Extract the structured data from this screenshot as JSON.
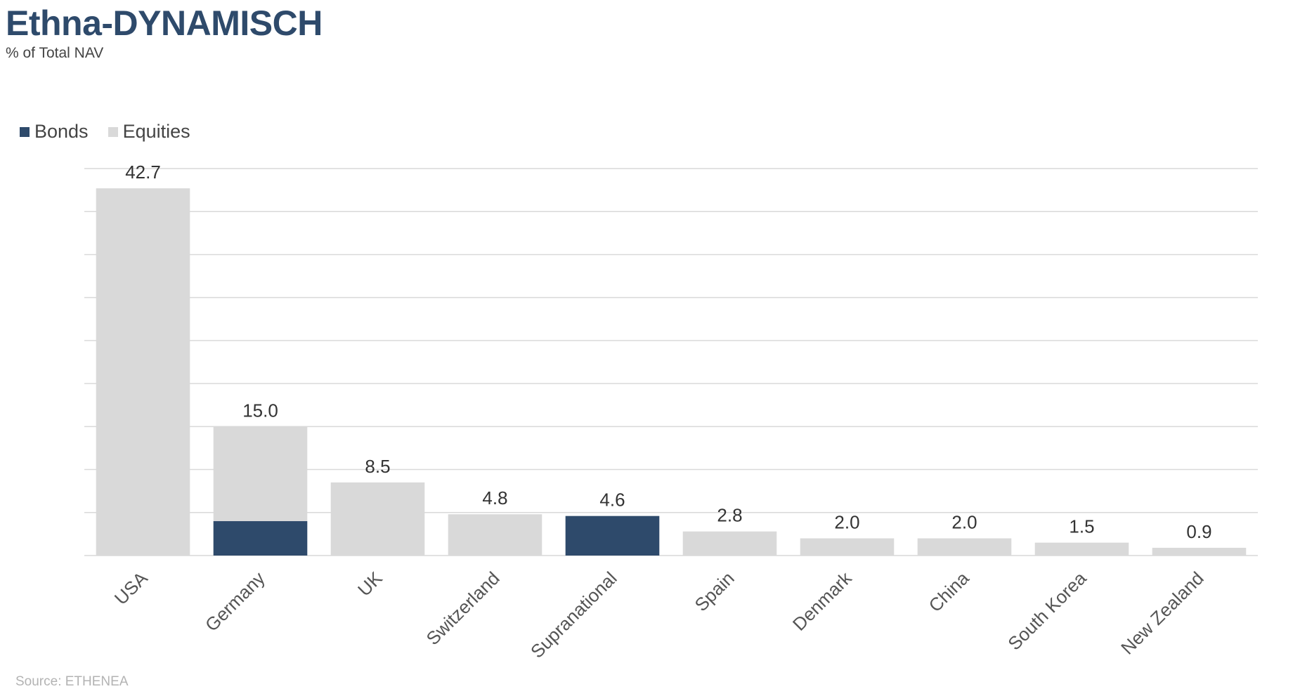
{
  "header": {
    "title": "Ethna-DYNAMISCH",
    "subtitle": "% of Total NAV"
  },
  "legend": {
    "items": [
      {
        "label": "Bonds",
        "color": "#2e4a6b"
      },
      {
        "label": "Equities",
        "color": "#d9d9d9"
      }
    ]
  },
  "footer": {
    "source": "Source: ETHENEA"
  },
  "chart_data": {
    "type": "bar",
    "stacked": true,
    "categories": [
      "USA",
      "Germany",
      "UK",
      "Switzerland",
      "Supranational",
      "Spain",
      "Denmark",
      "China",
      "South Korea",
      "New Zealand"
    ],
    "series": [
      {
        "name": "Bonds",
        "color": "#2e4a6b",
        "values": [
          0,
          4.0,
          0,
          0,
          4.6,
          0,
          0,
          0,
          0,
          0
        ]
      },
      {
        "name": "Equities",
        "color": "#d9d9d9",
        "values": [
          42.7,
          11.0,
          8.5,
          4.8,
          0,
          2.8,
          2.0,
          2.0,
          1.5,
          0.9
        ]
      }
    ],
    "totals": [
      "42.7",
      "15.0",
      "8.5",
      "4.8",
      "4.6",
      "2.8",
      "2.0",
      "2.0",
      "1.5",
      "0.9"
    ],
    "ylim": [
      0,
      45
    ],
    "grid": true,
    "legend_position": "top-left",
    "xlabel": "",
    "ylabel": ""
  }
}
